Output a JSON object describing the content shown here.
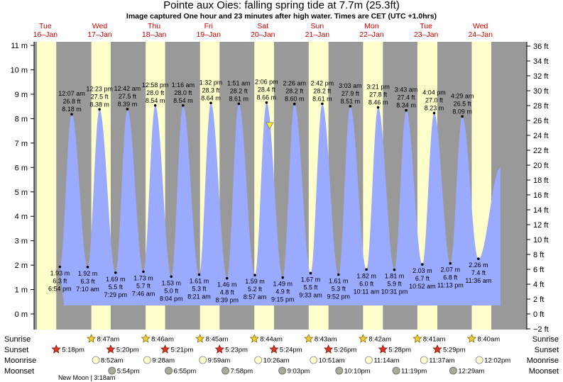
{
  "title": "Pointe aux Oies: falling  spring tide at 7.7m (25.3ft)",
  "subtitle": "Image captured One hour and 23 minutes after high water. Times are CET (UTC +1.0hrs)",
  "chart_data": {
    "type": "area",
    "title": "Pointe aux Oies: falling  spring tide at 7.7m (25.3ft)",
    "ylabel_left_unit": "m",
    "ylabel_right_unit": "ft",
    "ylim_m": [
      -0.62,
      11
    ],
    "ylim_ft": [
      -2,
      36
    ],
    "y_ticks_m": [
      "0 m",
      "1 m",
      "2 m",
      "3 m",
      "4 m",
      "5 m",
      "6 m",
      "7 m",
      "8 m",
      "9 m",
      "10 m",
      "11 m"
    ],
    "y_ticks_ft": [
      "−2 ft",
      "0 ft",
      "2 ft",
      "4 ft",
      "6 ft",
      "8 ft",
      "10 ft",
      "12 ft",
      "14 ft",
      "16 ft",
      "18 ft",
      "20 ft",
      "22 ft",
      "24 ft",
      "26 ft",
      "28 ft",
      "30 ft",
      "32 ft",
      "34 ft",
      "36 ft"
    ],
    "days": [
      {
        "dow": "Tue",
        "date": "16–Jan"
      },
      {
        "dow": "Wed",
        "date": "17–Jan"
      },
      {
        "dow": "Thu",
        "date": "18–Jan"
      },
      {
        "dow": "Fri",
        "date": "19–Jan"
      },
      {
        "dow": "Sat",
        "date": "20–Jan"
      },
      {
        "dow": "Sun",
        "date": "21–Jan"
      },
      {
        "dow": "Mon",
        "date": "22–Jan"
      },
      {
        "dow": "Tue",
        "date": "23–Jan"
      },
      {
        "dow": "Wed",
        "date": "24–Jan"
      }
    ],
    "high_tides": [
      {
        "day": 1,
        "time": "12:07 am",
        "ft": "26.8 ft",
        "m": "8.18 m",
        "value": 8.18
      },
      {
        "day": 1,
        "time": "12:23 pm",
        "ft": "27.5 ft",
        "m": "8.38 m",
        "value": 8.38
      },
      {
        "day": 2,
        "time": "12:42 am",
        "ft": "27.5 ft",
        "m": "8.39 m",
        "value": 8.39
      },
      {
        "day": 2,
        "time": "12:58 pm",
        "ft": "28.0 ft",
        "m": "8.54 m",
        "value": 8.54
      },
      {
        "day": 3,
        "time": "1:16 am",
        "ft": "28.0 ft",
        "m": "8.54 m",
        "value": 8.54
      },
      {
        "day": 3,
        "time": "1:32 pm",
        "ft": "28.3 ft",
        "m": "8.64 m",
        "value": 8.64
      },
      {
        "day": 4,
        "time": "1:51 am",
        "ft": "28.2 ft",
        "m": "8.61 m",
        "value": 8.61
      },
      {
        "day": 4,
        "time": "2:06 pm",
        "ft": "28.4 ft",
        "m": "8.66 m",
        "value": 8.66
      },
      {
        "day": 5,
        "time": "2:26 am",
        "ft": "28.2 ft",
        "m": "8.60 m",
        "value": 8.6
      },
      {
        "day": 5,
        "time": "2:42 pm",
        "ft": "28.2 ft",
        "m": "8.61 m",
        "value": 8.61
      },
      {
        "day": 6,
        "time": "3:03 am",
        "ft": "27.9 ft",
        "m": "8.51 m",
        "value": 8.51
      },
      {
        "day": 6,
        "time": "3:21 pm",
        "ft": "27.8 ft",
        "m": "8.46 m",
        "value": 8.46
      },
      {
        "day": 7,
        "time": "3:43 am",
        "ft": "27.4 ft",
        "m": "8.34 m",
        "value": 8.34
      },
      {
        "day": 7,
        "time": "4:04 pm",
        "ft": "27.0 ft",
        "m": "8.23 m",
        "value": 8.23
      },
      {
        "day": 8,
        "time": "4:29 am",
        "ft": "26.5 ft",
        "m": "8.09 m",
        "value": 8.09
      }
    ],
    "low_tides": [
      {
        "day": 0,
        "time": "6:54 pm",
        "ft": "6.3 ft",
        "m": "1.93 m",
        "value": 1.93
      },
      {
        "day": 1,
        "time": "7:10 am",
        "ft": "6.3 ft",
        "m": "1.92 m",
        "value": 1.92
      },
      {
        "day": 1,
        "time": "7:29 pm",
        "ft": "5.5 ft",
        "m": "1.69 m",
        "value": 1.69
      },
      {
        "day": 2,
        "time": "7:46 am",
        "ft": "5.7 ft",
        "m": "1.73 m",
        "value": 1.73
      },
      {
        "day": 2,
        "time": "8:04 pm",
        "ft": "5.0 ft",
        "m": "1.53 m",
        "value": 1.53
      },
      {
        "day": 3,
        "time": "8:21 am",
        "ft": "5.3 ft",
        "m": "1.61 m",
        "value": 1.61
      },
      {
        "day": 3,
        "time": "8:39 pm",
        "ft": "4.8 ft",
        "m": "1.46 m",
        "value": 1.46
      },
      {
        "day": 4,
        "time": "8:57 am",
        "ft": "5.2 ft",
        "m": "1.59 m",
        "value": 1.59
      },
      {
        "day": 4,
        "time": "9:15 pm",
        "ft": "4.9 ft",
        "m": "1.49 m",
        "value": 1.49
      },
      {
        "day": 5,
        "time": "9:33 am",
        "ft": "5.5 ft",
        "m": "1.67 m",
        "value": 1.67
      },
      {
        "day": 5,
        "time": "9:52 pm",
        "ft": "5.3 ft",
        "m": "1.61 m",
        "value": 1.61
      },
      {
        "day": 6,
        "time": "10:11 am",
        "ft": "6.0 ft",
        "m": "1.82 m",
        "value": 1.82
      },
      {
        "day": 6,
        "time": "10:31 pm",
        "ft": "5.9 ft",
        "m": "1.81 m",
        "value": 1.81
      },
      {
        "day": 7,
        "time": "10:52 am",
        "ft": "6.7 ft",
        "m": "2.03 m",
        "value": 2.03
      },
      {
        "day": 7,
        "time": "11:13 pm",
        "ft": "6.8 ft",
        "m": "2.07 m",
        "value": 2.07
      },
      {
        "day": 8,
        "time": "11:36 am",
        "ft": "7.4 ft",
        "m": "2.26 m",
        "value": 2.26
      }
    ],
    "current_marker": {
      "day": 4,
      "hour": 15.5,
      "value": 7.7
    },
    "colors": {
      "day": "#ffffcc",
      "night": "#999999",
      "water": "#99aaff",
      "day_label": "#cc0000"
    }
  },
  "astro": {
    "row_labels": [
      "Sunrise",
      "Sunset",
      "Moonrise",
      "Moonset"
    ],
    "sunrise": [
      {
        "day": 1,
        "text": "8:47am"
      },
      {
        "day": 2,
        "text": "8:46am"
      },
      {
        "day": 3,
        "text": "8:45am"
      },
      {
        "day": 4,
        "text": "8:44am"
      },
      {
        "day": 5,
        "text": "8:43am"
      },
      {
        "day": 6,
        "text": "8:42am"
      },
      {
        "day": 7,
        "text": "8:41am"
      },
      {
        "day": 8,
        "text": "8:40am"
      }
    ],
    "sunset": [
      {
        "day": 0,
        "text": "5:18pm"
      },
      {
        "day": 1,
        "text": "5:20pm"
      },
      {
        "day": 2,
        "text": "5:21pm"
      },
      {
        "day": 3,
        "text": "5:23pm"
      },
      {
        "day": 4,
        "text": "5:24pm"
      },
      {
        "day": 5,
        "text": "5:26pm"
      },
      {
        "day": 6,
        "text": "5:28pm"
      },
      {
        "day": 7,
        "text": "5:29pm"
      }
    ],
    "moonrise": [
      {
        "day": 1,
        "text": "8:52am"
      },
      {
        "day": 2,
        "text": "9:28am"
      },
      {
        "day": 3,
        "text": "9:59am"
      },
      {
        "day": 4,
        "text": "10:26am"
      },
      {
        "day": 5,
        "text": "10:51am"
      },
      {
        "day": 6,
        "text": "11:14am"
      },
      {
        "day": 7,
        "text": "11:37am"
      },
      {
        "day": 8,
        "text": "12:02pm"
      }
    ],
    "moonset": [
      {
        "day": 1,
        "text": "5:54pm"
      },
      {
        "day": 2,
        "text": "6:55pm"
      },
      {
        "day": 3,
        "text": "7:58pm"
      },
      {
        "day": 4,
        "text": "9:03pm"
      },
      {
        "day": 5,
        "text": "10:10pm"
      },
      {
        "day": 6,
        "text": "11:19pm"
      },
      {
        "day": 7,
        "text": "12:29am"
      }
    ],
    "moon_phase": "New Moon | 3:18am"
  }
}
